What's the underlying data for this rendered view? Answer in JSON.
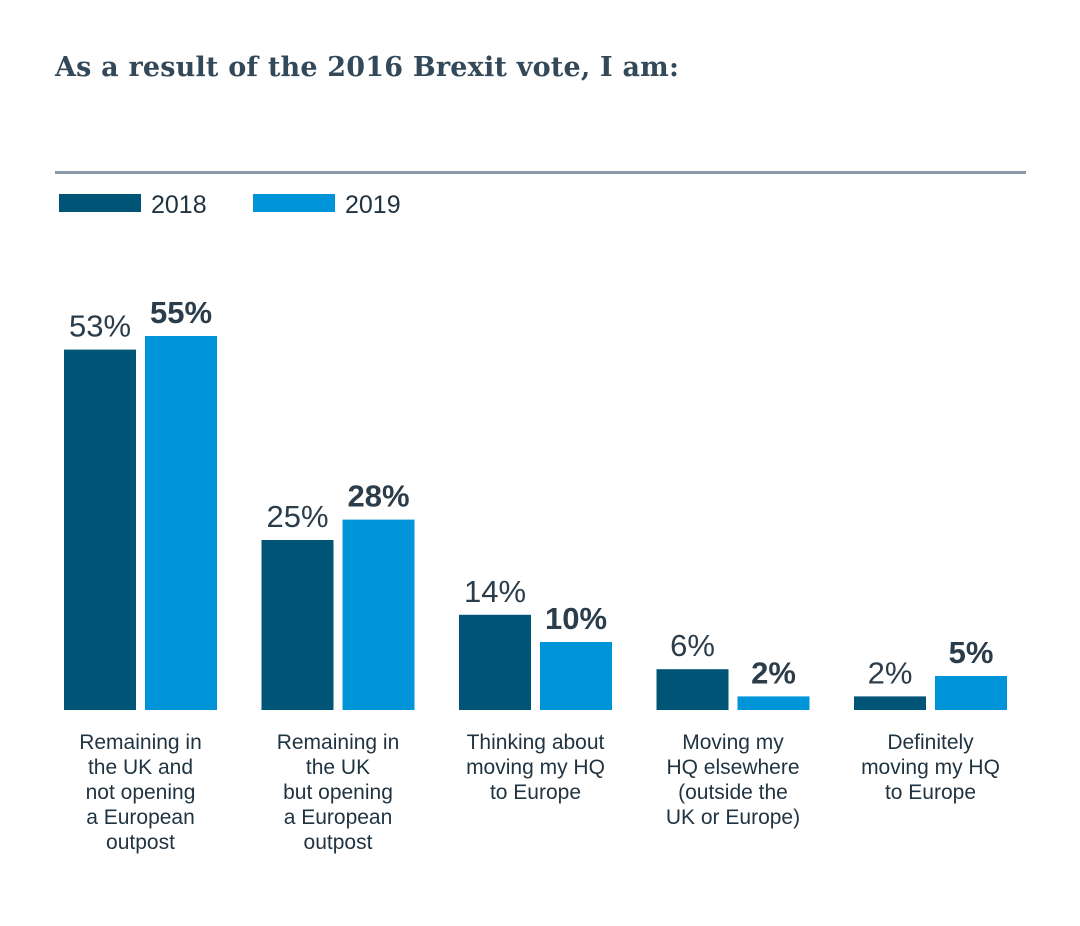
{
  "chart_data": {
    "type": "bar",
    "title": "As a result of the 2016 Brexit vote, I am:",
    "categories": [
      "Remaining in the UK and not opening a European outpost",
      "Remaining in the UK but opening a European outpost",
      "Thinking about moving my HQ to Europe",
      "Moving my HQ elsewhere (outside the UK or Europe)",
      "Definitely moving my HQ to Europe"
    ],
    "category_label_lines": [
      [
        "Remaining in",
        "the UK and",
        "not opening",
        "a European",
        "outpost"
      ],
      [
        "Remaining in",
        "the UK",
        "but opening",
        "a European",
        "outpost"
      ],
      [
        "Thinking about",
        "moving my HQ",
        "to Europe"
      ],
      [
        "Moving my",
        "HQ elsewhere",
        "(outside the",
        "UK or Europe)"
      ],
      [
        "Definitely",
        "moving my HQ",
        "to Europe"
      ]
    ],
    "series": [
      {
        "name": "2018",
        "values": [
          53,
          25,
          14,
          6,
          2
        ],
        "labels": [
          "53%",
          "25%",
          "14%",
          "6%",
          "2%"
        ],
        "color": "#005476"
      },
      {
        "name": "2019",
        "values": [
          55,
          28,
          10,
          2,
          5
        ],
        "labels": [
          "55%",
          "28%",
          "10%",
          "2%",
          "5%"
        ],
        "color": "#0095d9"
      }
    ],
    "unit": "%",
    "ylim": [
      0,
      55
    ],
    "grid": false,
    "legend_position": "top-left"
  }
}
